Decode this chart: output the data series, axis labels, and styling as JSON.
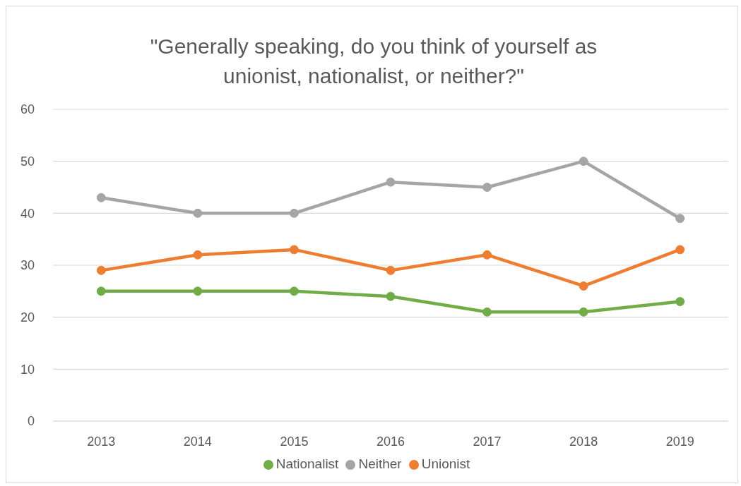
{
  "chart_data": {
    "type": "line",
    "title": "\"Generally speaking, do you think of yourself as unionist, nationalist, or neither?\"",
    "categories": [
      "2013",
      "2014",
      "2015",
      "2016",
      "2017",
      "2018",
      "2019"
    ],
    "series": [
      {
        "name": "Unionist",
        "color": "#ed7d31",
        "values": [
          29,
          32,
          33,
          29,
          32,
          26,
          33
        ]
      },
      {
        "name": "Nationalist",
        "color": "#70ad47",
        "values": [
          25,
          25,
          25,
          24,
          21,
          21,
          23
        ]
      },
      {
        "name": "Neither",
        "color": "#a5a5a5",
        "values": [
          43,
          40,
          40,
          46,
          45,
          50,
          39
        ]
      }
    ],
    "ylim": [
      0,
      60
    ],
    "yticks": [
      0,
      10,
      20,
      30,
      40,
      50,
      60
    ],
    "grid": "y",
    "legend": "bottom",
    "marker": "circle",
    "line_style": "solid"
  }
}
